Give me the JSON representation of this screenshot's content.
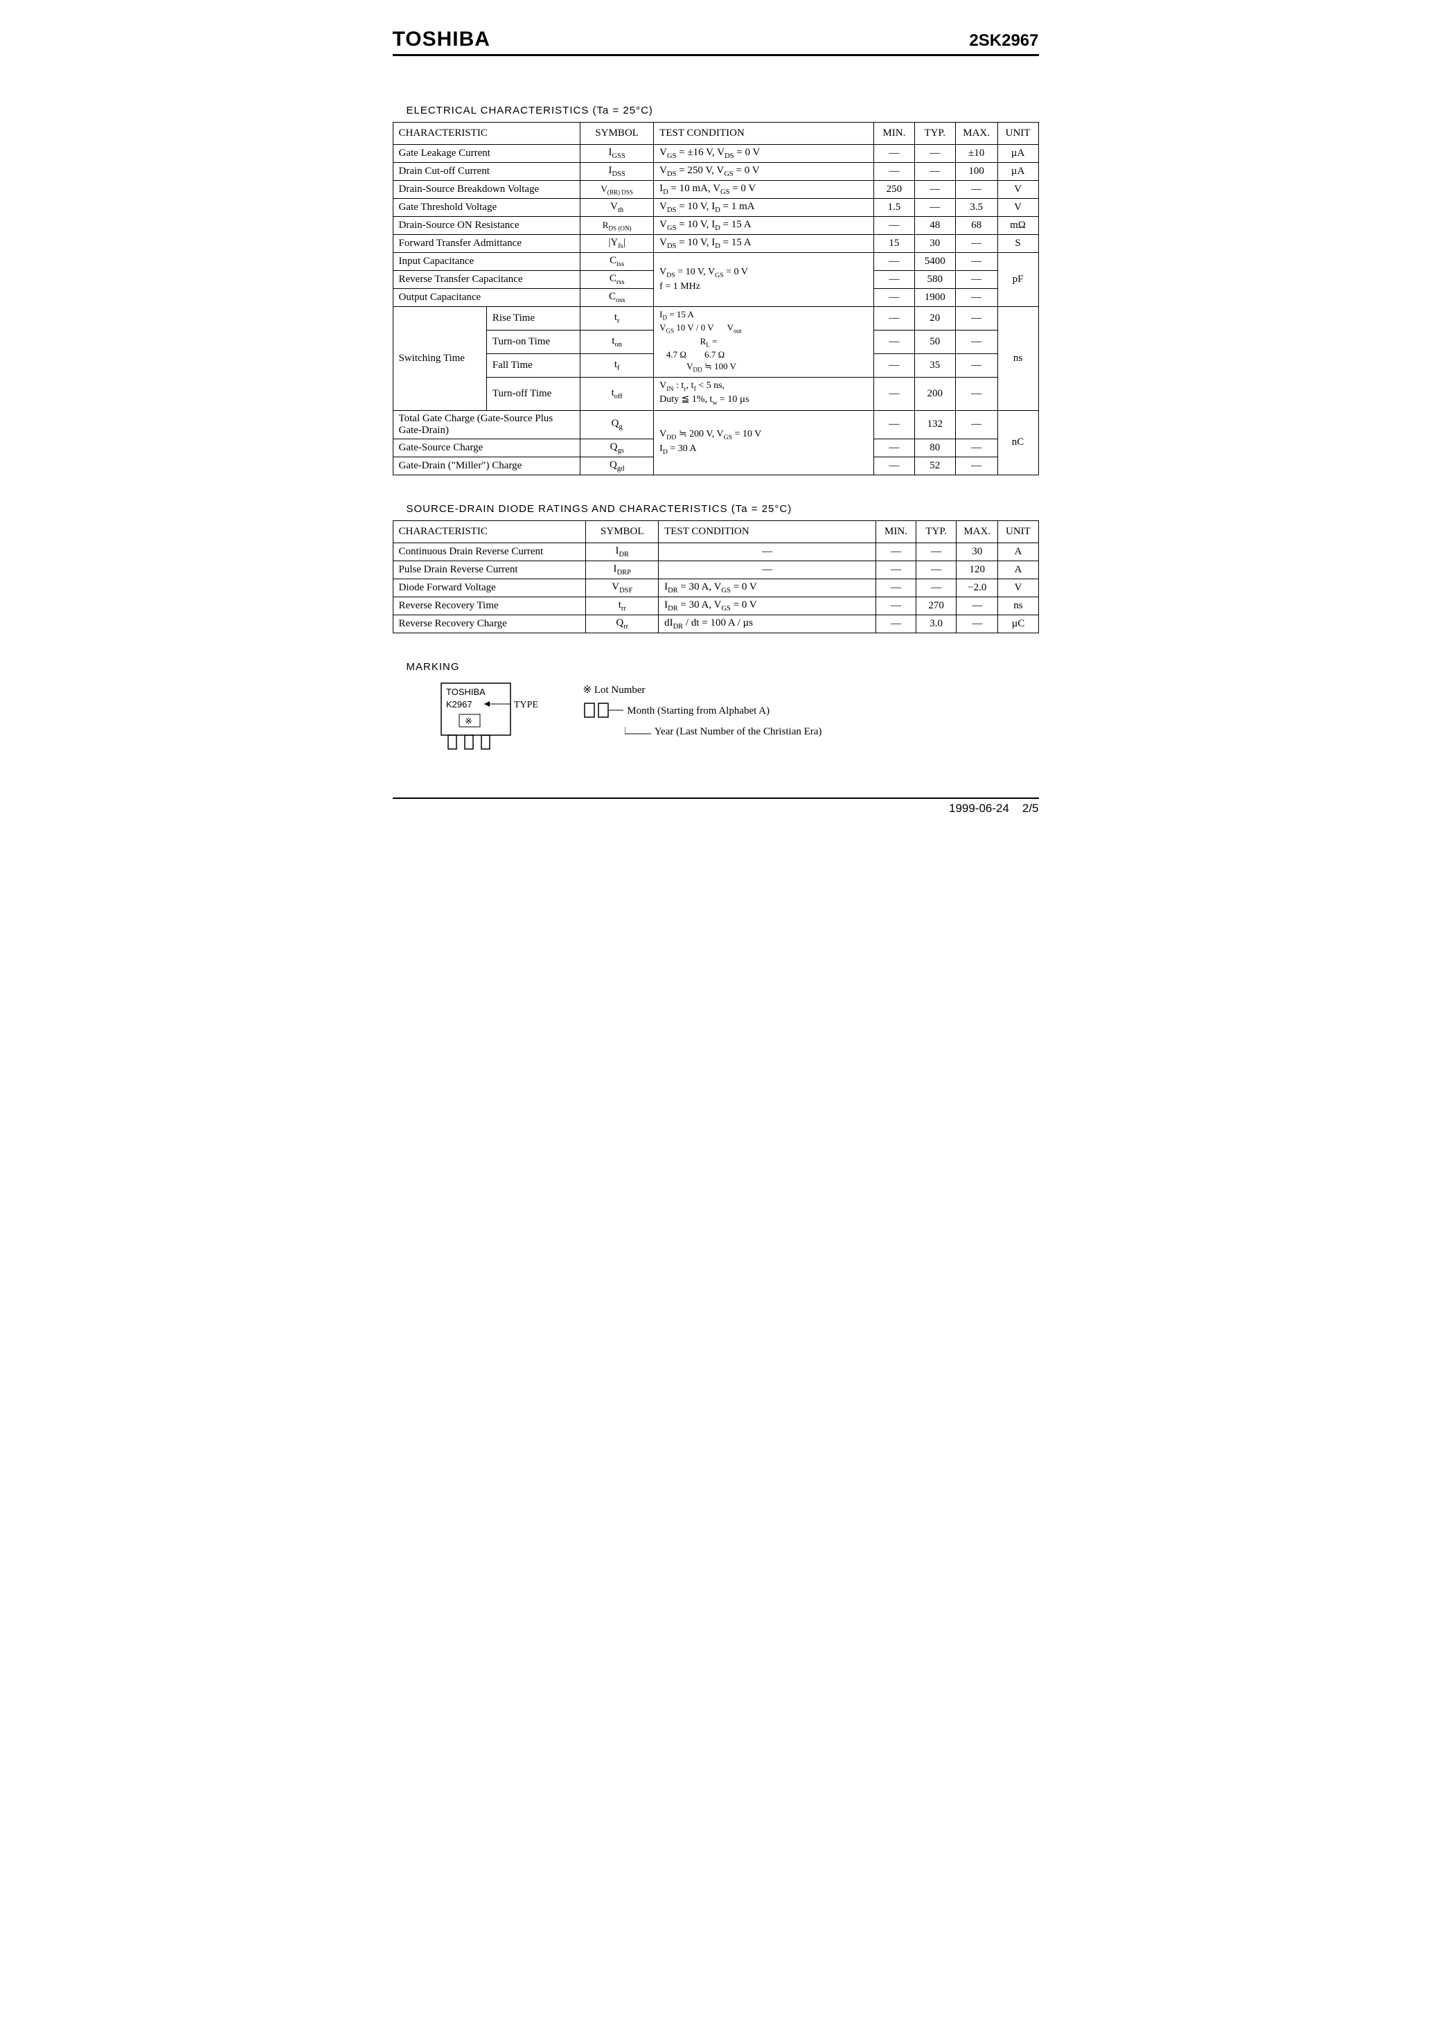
{
  "header": {
    "brand": "TOSHIBA",
    "part": "2SK2967"
  },
  "section1_title": "ELECTRICAL CHARACTERISTICS (Ta = 25°C)",
  "headers": {
    "char": "CHARACTERISTIC",
    "sym": "SYMBOL",
    "test": "TEST CONDITION",
    "min": "MIN.",
    "typ": "TYP.",
    "max": "MAX.",
    "unit": "UNIT"
  },
  "t1": {
    "r1": {
      "char": "Gate Leakage Current",
      "sym": "I<sub>GSS</sub>",
      "test": "V<sub>GS</sub> = ±16 V, V<sub>DS</sub> = 0 V",
      "min": "—",
      "typ": "—",
      "max": "±10",
      "unit": "µA"
    },
    "r2": {
      "char": "Drain Cut-off Current",
      "sym": "I<sub>DSS</sub>",
      "test": "V<sub>DS</sub> = 250 V, V<sub>GS</sub> = 0 V",
      "min": "—",
      "typ": "—",
      "max": "100",
      "unit": "µA"
    },
    "r3": {
      "char": "Drain-Source Breakdown Voltage",
      "sym": "V<sub>(BR) DSS</sub>",
      "test": "I<sub>D</sub> = 10 mA, V<sub>GS</sub> = 0 V",
      "min": "250",
      "typ": "—",
      "max": "—",
      "unit": "V"
    },
    "r4": {
      "char": "Gate Threshold Voltage",
      "sym": "V<sub>th</sub>",
      "test": "V<sub>DS</sub> = 10 V, I<sub>D</sub> = 1 mA",
      "min": "1.5",
      "typ": "—",
      "max": "3.5",
      "unit": "V"
    },
    "r5": {
      "char": "Drain-Source ON Resistance",
      "sym": "R<sub>DS (ON)</sub>",
      "test": "V<sub>GS</sub> = 10 V, I<sub>D</sub> = 15 A",
      "min": "—",
      "typ": "48",
      "max": "68",
      "unit": "mΩ"
    },
    "r6": {
      "char": "Forward Transfer Admittance",
      "sym": "|Y<sub>fs</sub>|",
      "test": "V<sub>DS</sub> = 10 V, I<sub>D</sub> = 15 A",
      "min": "15",
      "typ": "30",
      "max": "—",
      "unit": "S"
    },
    "r7": {
      "char": "Input Capacitance",
      "sym": "C<sub>iss</sub>",
      "min": "—",
      "typ": "5400",
      "max": "—"
    },
    "r8": {
      "char": "Reverse Transfer Capacitance",
      "sym": "C<sub>rss</sub>",
      "test": "V<sub>DS</sub> = 10 V, V<sub>GS</sub> = 0 V<br>f = 1 MHz",
      "min": "—",
      "typ": "580",
      "max": "—",
      "unit": "pF"
    },
    "r9": {
      "char": "Output Capacitance",
      "sym": "C<sub>oss</sub>",
      "min": "—",
      "typ": "1900",
      "max": "—"
    },
    "sw_label": "Switching Time",
    "sw1": {
      "char": "Rise Time",
      "sym": "t<sub>r</sub>",
      "min": "—",
      "typ": "20",
      "max": "—"
    },
    "sw2": {
      "char": "Turn-on Time",
      "sym": "t<sub>on</sub>",
      "min": "—",
      "typ": "50",
      "max": "—"
    },
    "sw3": {
      "char": "Fall Time",
      "sym": "t<sub>f</sub>",
      "min": "—",
      "typ": "35",
      "max": "—"
    },
    "sw4": {
      "char": "Turn-off Time",
      "sym": "t<sub>off</sub>",
      "min": "—",
      "typ": "200",
      "max": "—"
    },
    "sw_unit": "ns",
    "sw_test1": "I<sub>D</sub> = 15 A<br>V<sub>GS</sub> 10 V / 0 V &nbsp;&nbsp;&nbsp;&nbsp; V<sub>out</sub><br>&nbsp;&nbsp;&nbsp;&nbsp;&nbsp;&nbsp;&nbsp;&nbsp;&nbsp;&nbsp;&nbsp;&nbsp;&nbsp;&nbsp;&nbsp;&nbsp;&nbsp;&nbsp;R<sub>L</sub> =<br>&nbsp;&nbsp;&nbsp;4.7 Ω&nbsp;&nbsp;&nbsp;&nbsp;&nbsp;&nbsp;&nbsp;&nbsp;6.7 Ω<br>&nbsp;&nbsp;&nbsp;&nbsp;&nbsp;&nbsp;&nbsp;&nbsp;&nbsp;&nbsp;&nbsp;&nbsp;V<sub>DD</sub> ≒ 100 V",
    "sw_test2": "V<sub>IN</sub> : t<sub>r</sub>, t<sub>f</sub> &lt; 5 ns,<br>Duty ≦ 1%, t<sub>w</sub> = 10 µs",
    "q1": {
      "char": "Total Gate Charge (Gate-Source Plus Gate-Drain)",
      "sym": "Q<sub>g</sub>",
      "min": "—",
      "typ": "132",
      "max": "—"
    },
    "q2": {
      "char": "Gate-Source Charge",
      "sym": "Q<sub>gs</sub>",
      "min": "—",
      "typ": "80",
      "max": "—"
    },
    "q3": {
      "char": "Gate-Drain (\"Miller\") Charge",
      "sym": "Q<sub>gd</sub>",
      "min": "—",
      "typ": "52",
      "max": "—"
    },
    "q_test": "V<sub>DD</sub> ≒ 200 V, V<sub>GS</sub> = 10 V<br>I<sub>D</sub> = 30 A",
    "q_unit": "nC"
  },
  "section2_title": "SOURCE-DRAIN DIODE RATINGS AND CHARACTERISTICS (Ta = 25°C)",
  "t2": {
    "r1": {
      "char": "Continuous Drain Reverse Current",
      "sym": "I<sub>DR</sub>",
      "test": "—",
      "min": "—",
      "typ": "—",
      "max": "30",
      "unit": "A"
    },
    "r2": {
      "char": "Pulse Drain Reverse Current",
      "sym": "I<sub>DRP</sub>",
      "test": "—",
      "min": "—",
      "typ": "—",
      "max": "120",
      "unit": "A"
    },
    "r3": {
      "char": "Diode Forward Voltage",
      "sym": "V<sub>DSF</sub>",
      "test": "I<sub>DR</sub> = 30 A, V<sub>GS</sub> = 0 V",
      "min": "—",
      "typ": "—",
      "max": "−2.0",
      "unit": "V"
    },
    "r4": {
      "char": "Reverse Recovery Time",
      "sym": "t<sub>rr</sub>",
      "test": "I<sub>DR</sub> = 30 A, V<sub>GS</sub> = 0 V",
      "min": "—",
      "typ": "270",
      "max": "—",
      "unit": "ns"
    },
    "r5": {
      "char": "Reverse Recovery Charge",
      "sym": "Q<sub>rr</sub>",
      "test": "dI<sub>DR</sub> / dt = 100 A / µs",
      "min": "—",
      "typ": "3.0",
      "max": "—",
      "unit": "µC"
    }
  },
  "marking_title": "MARKING",
  "marking": {
    "chip_brand": "TOSHIBA",
    "chip_type": "K2967",
    "type_label": "TYPE",
    "lot_label": "※ Lot Number",
    "month_label": "Month (Starting from Alphabet A)",
    "year_label": "Year   (Last Number of the Christian Era)"
  },
  "footer": {
    "date": "1999-06-24",
    "page": "2/5"
  }
}
